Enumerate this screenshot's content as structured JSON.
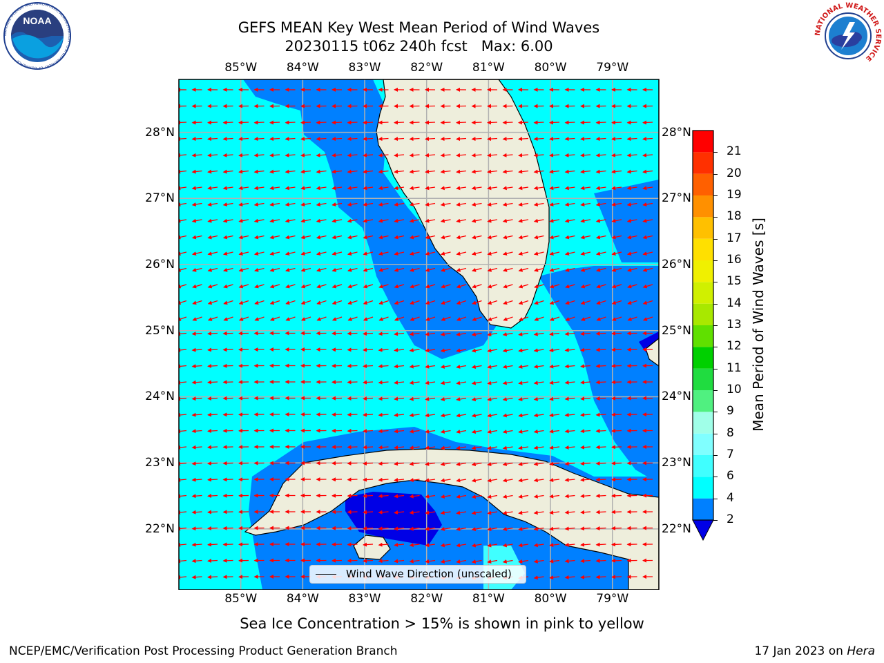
{
  "title": {
    "line1": "GEFS MEAN Key West Mean Period of Wind Waves",
    "line2": "20230115 t06z 240h fcst   Max: 6.00"
  },
  "logos": {
    "noaa": {
      "text": "NOAA",
      "ring_text": "NATIONAL OCEANIC AND ATMOSPHERIC ADMINISTRATION · U.S. DEPARTMENT OF COMMERCE",
      "icon": "noaa-logo"
    },
    "nws": {
      "ring_text": "NATIONAL WEATHER SERVICE",
      "icon": "nws-logo"
    }
  },
  "map": {
    "lon_labels": [
      "85°W",
      "84°W",
      "83°W",
      "82°W",
      "81°W",
      "80°W",
      "79°W"
    ],
    "lat_labels": [
      "28°N",
      "27°N",
      "26°N",
      "25°N",
      "24°N",
      "23°N",
      "22°N"
    ],
    "lon_range": [
      -86.0,
      -78.25
    ],
    "lat_range": [
      21.08,
      28.8
    ],
    "colors": {
      "ocean_light": "#00ffff",
      "ocean_mid": "#0080ff",
      "ocean_dark": "#0000e6",
      "land": "#eeeedc",
      "arrow": "#ff0000",
      "grid": "#b0b0b0"
    }
  },
  "colorbar": {
    "label": "Mean Period of Wind Waves [s]",
    "ticks": [
      "2",
      "4",
      "6",
      "7",
      "8",
      "9",
      "10",
      "11",
      "12",
      "13",
      "14",
      "15",
      "16",
      "17",
      "18",
      "19",
      "20",
      "21"
    ],
    "colors": [
      "#0080ff",
      "#00ffff",
      "#40ffff",
      "#80ffff",
      "#a0ffe8",
      "#50f080",
      "#20dc40",
      "#00d000",
      "#60e000",
      "#a8e800",
      "#d0f000",
      "#f0f000",
      "#ffe000",
      "#ffc000",
      "#ff9000",
      "#ff6000",
      "#ff3000",
      "#ff0000"
    ],
    "under_color": "#0000e6"
  },
  "legend": {
    "label": "Wind Wave Direction (unscaled)"
  },
  "ice_note": "Sea Ice Concentration > 15% is shown in pink to yellow",
  "footer": {
    "left": "NCEP/EMC/Verification Post Processing Product Generation Branch",
    "right_date": "17 Jan 2023 on ",
    "right_host": "Hera"
  }
}
